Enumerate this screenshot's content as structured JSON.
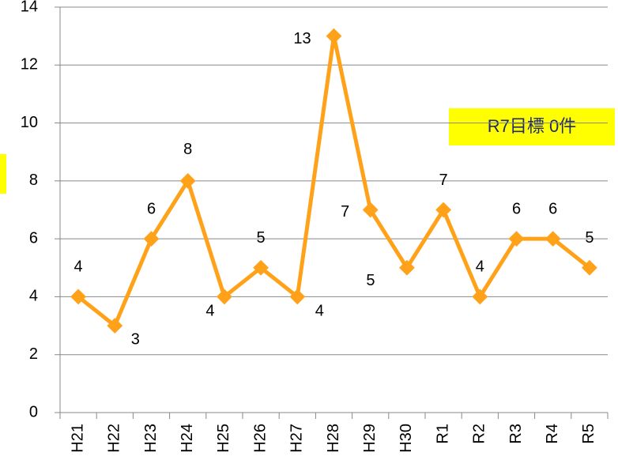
{
  "chart_data": {
    "type": "line",
    "categories": [
      "H21",
      "H22",
      "H23",
      "H24",
      "H25",
      "H26",
      "H27",
      "H28",
      "H29",
      "H30",
      "R1",
      "R2",
      "R3",
      "R4",
      "R5"
    ],
    "values": [
      4,
      3,
      6,
      8,
      4,
      5,
      4,
      13,
      7,
      5,
      7,
      4,
      6,
      6,
      5
    ],
    "color": "#ffa21a",
    "ylim": [
      0,
      14
    ],
    "yticks": [
      0,
      2,
      4,
      6,
      8,
      10,
      12,
      14
    ],
    "grid": true,
    "annotation": "R7目標 0件"
  }
}
